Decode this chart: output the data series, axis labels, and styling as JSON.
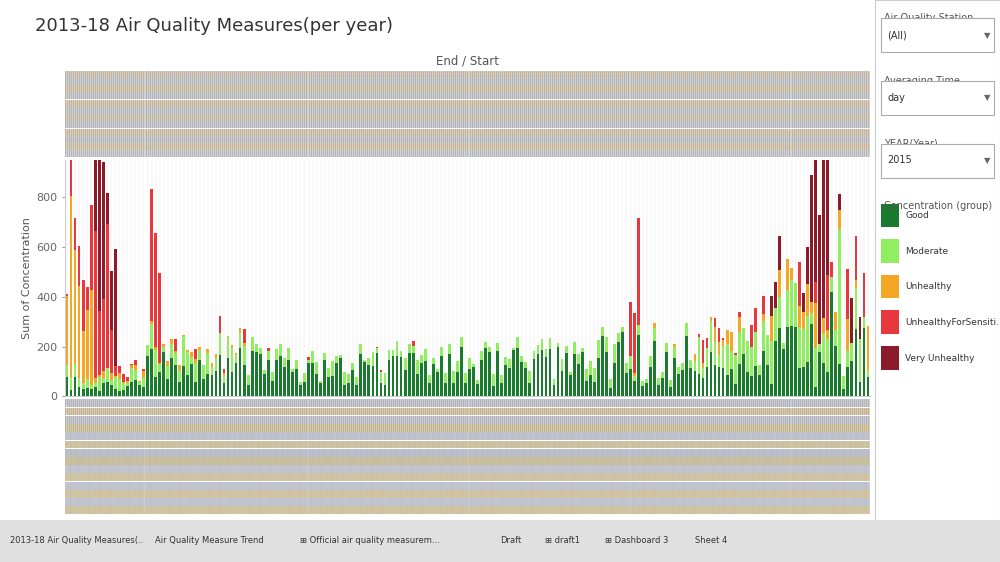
{
  "title": "2013-18 Air Quality Measures(per year)",
  "xlabel": "End / Start",
  "ylabel": "Sum of Concentration",
  "bg_color": "#ffffff",
  "plot_bg": "#ffffff",
  "colors": {
    "Good": "#1a7a2e",
    "Moderate": "#90ee60",
    "Unhealthy": "#f5a623",
    "UnhealthyForSensiti...": "#e8383d",
    "Very Unhealthy": "#8b1a2a"
  },
  "legend_labels": [
    "Good",
    "Moderate",
    "Unhealthy",
    "UnhealthyForSensiti...",
    "Very Unhealthy"
  ],
  "ylim": [
    0,
    950
  ],
  "yticks": [
    0,
    200,
    400,
    600,
    800
  ],
  "num_stations": 200,
  "seed": 42,
  "header_rows": 12,
  "footer_rows": 14,
  "right_panel_bg": "#ffffff"
}
